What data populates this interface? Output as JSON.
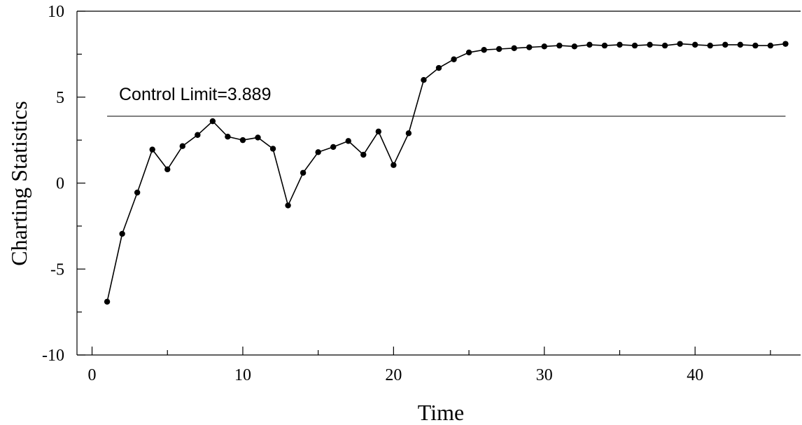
{
  "chart_data": {
    "type": "line",
    "title": "",
    "xlabel": "Time",
    "ylabel": "Charting Statistics",
    "xlim": [
      -1,
      47
    ],
    "ylim": [
      -10,
      10
    ],
    "x_ticks": [
      0,
      10,
      20,
      30,
      40
    ],
    "x_minor_ticks": [
      5,
      15,
      25,
      35,
      45
    ],
    "y_ticks": [
      -10,
      -5,
      0,
      5,
      10
    ],
    "y_minor_ticks": [
      -7.5,
      -2.5,
      2.5,
      7.5
    ],
    "grid": false,
    "series": [
      {
        "x": [
          1,
          2,
          3,
          4,
          5,
          6,
          7,
          8,
          9,
          10,
          11,
          12,
          13,
          14,
          15,
          16,
          17,
          18,
          19,
          20,
          21,
          22,
          23,
          24,
          25,
          26,
          27,
          28,
          29,
          30,
          31,
          32,
          33,
          34,
          35,
          36,
          37,
          38,
          39,
          40,
          41,
          42,
          43,
          44,
          45,
          46
        ],
        "values": [
          -6.9,
          -2.95,
          -0.55,
          1.95,
          0.8,
          2.15,
          2.8,
          3.6,
          2.7,
          2.5,
          2.65,
          2.0,
          -1.3,
          0.6,
          1.8,
          2.1,
          2.45,
          1.65,
          3.0,
          1.05,
          2.9,
          6.0,
          6.7,
          7.2,
          7.6,
          7.75,
          7.8,
          7.85,
          7.9,
          7.95,
          8.0,
          7.95,
          8.05,
          8.0,
          8.05,
          8.0,
          8.05,
          8.0,
          8.1,
          8.05,
          8.0,
          8.05,
          8.05,
          8.0,
          8.0,
          8.1
        ]
      }
    ],
    "reference_line": {
      "y": 3.889,
      "x_start": 1,
      "x_end": 46,
      "label": "Control Limit=3.889"
    }
  }
}
